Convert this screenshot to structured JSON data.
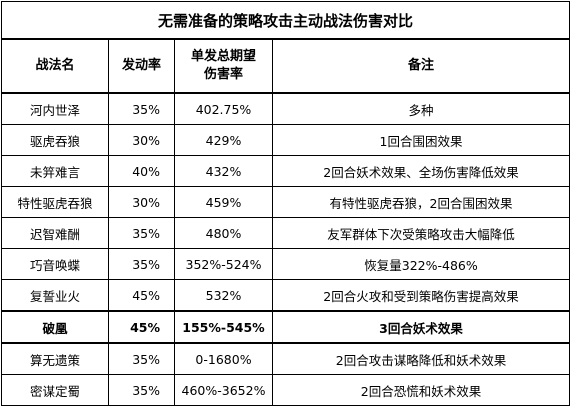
{
  "title": "无需准备的策略攻击主动战法伤害对比",
  "headers": {
    "name": "战法名",
    "trigger": "发动率",
    "damage_line1": "单发总期望",
    "damage_line2": "伤害率",
    "note": "备注"
  },
  "rows": [
    {
      "name": "河内世泽",
      "trigger": "35%",
      "damage": "402.75%",
      "note": "多种"
    },
    {
      "name": "驱虎吞狼",
      "trigger": "30%",
      "damage": "429%",
      "note": "1回合围困效果"
    },
    {
      "name": "未笄难言",
      "trigger": "40%",
      "damage": "432%",
      "note": "2回合妖术效果、全场伤害降低效果"
    },
    {
      "name": "特性驱虎吞狼",
      "trigger": "30%",
      "damage": "459%",
      "note": "有特性驱虎吞狼，2回合围困效果"
    },
    {
      "name": "迟智难酬",
      "trigger": "35%",
      "damage": "480%",
      "note": "友军群体下次受策略攻击大幅降低"
    },
    {
      "name": "巧音唤蝶",
      "trigger": "35%",
      "damage": "352%-524%",
      "note": "恢复量322%-486%"
    },
    {
      "name": "复誓业火",
      "trigger": "45%",
      "damage": "532%",
      "note": "2回合火攻和受到策略伤害提高效果"
    },
    {
      "name": "破凰",
      "trigger": "45%",
      "damage": "155%-545%",
      "note": "3回合妖术效果",
      "bold": true
    },
    {
      "name": "算无遗策",
      "trigger": "35%",
      "damage": "0-1680%",
      "note": "2回合攻击谋略降低和妖术效果"
    },
    {
      "name": "密谋定蜀",
      "trigger": "35%",
      "damage": "460%-3652%",
      "note": "2回合恐慌和妖术效果"
    }
  ]
}
